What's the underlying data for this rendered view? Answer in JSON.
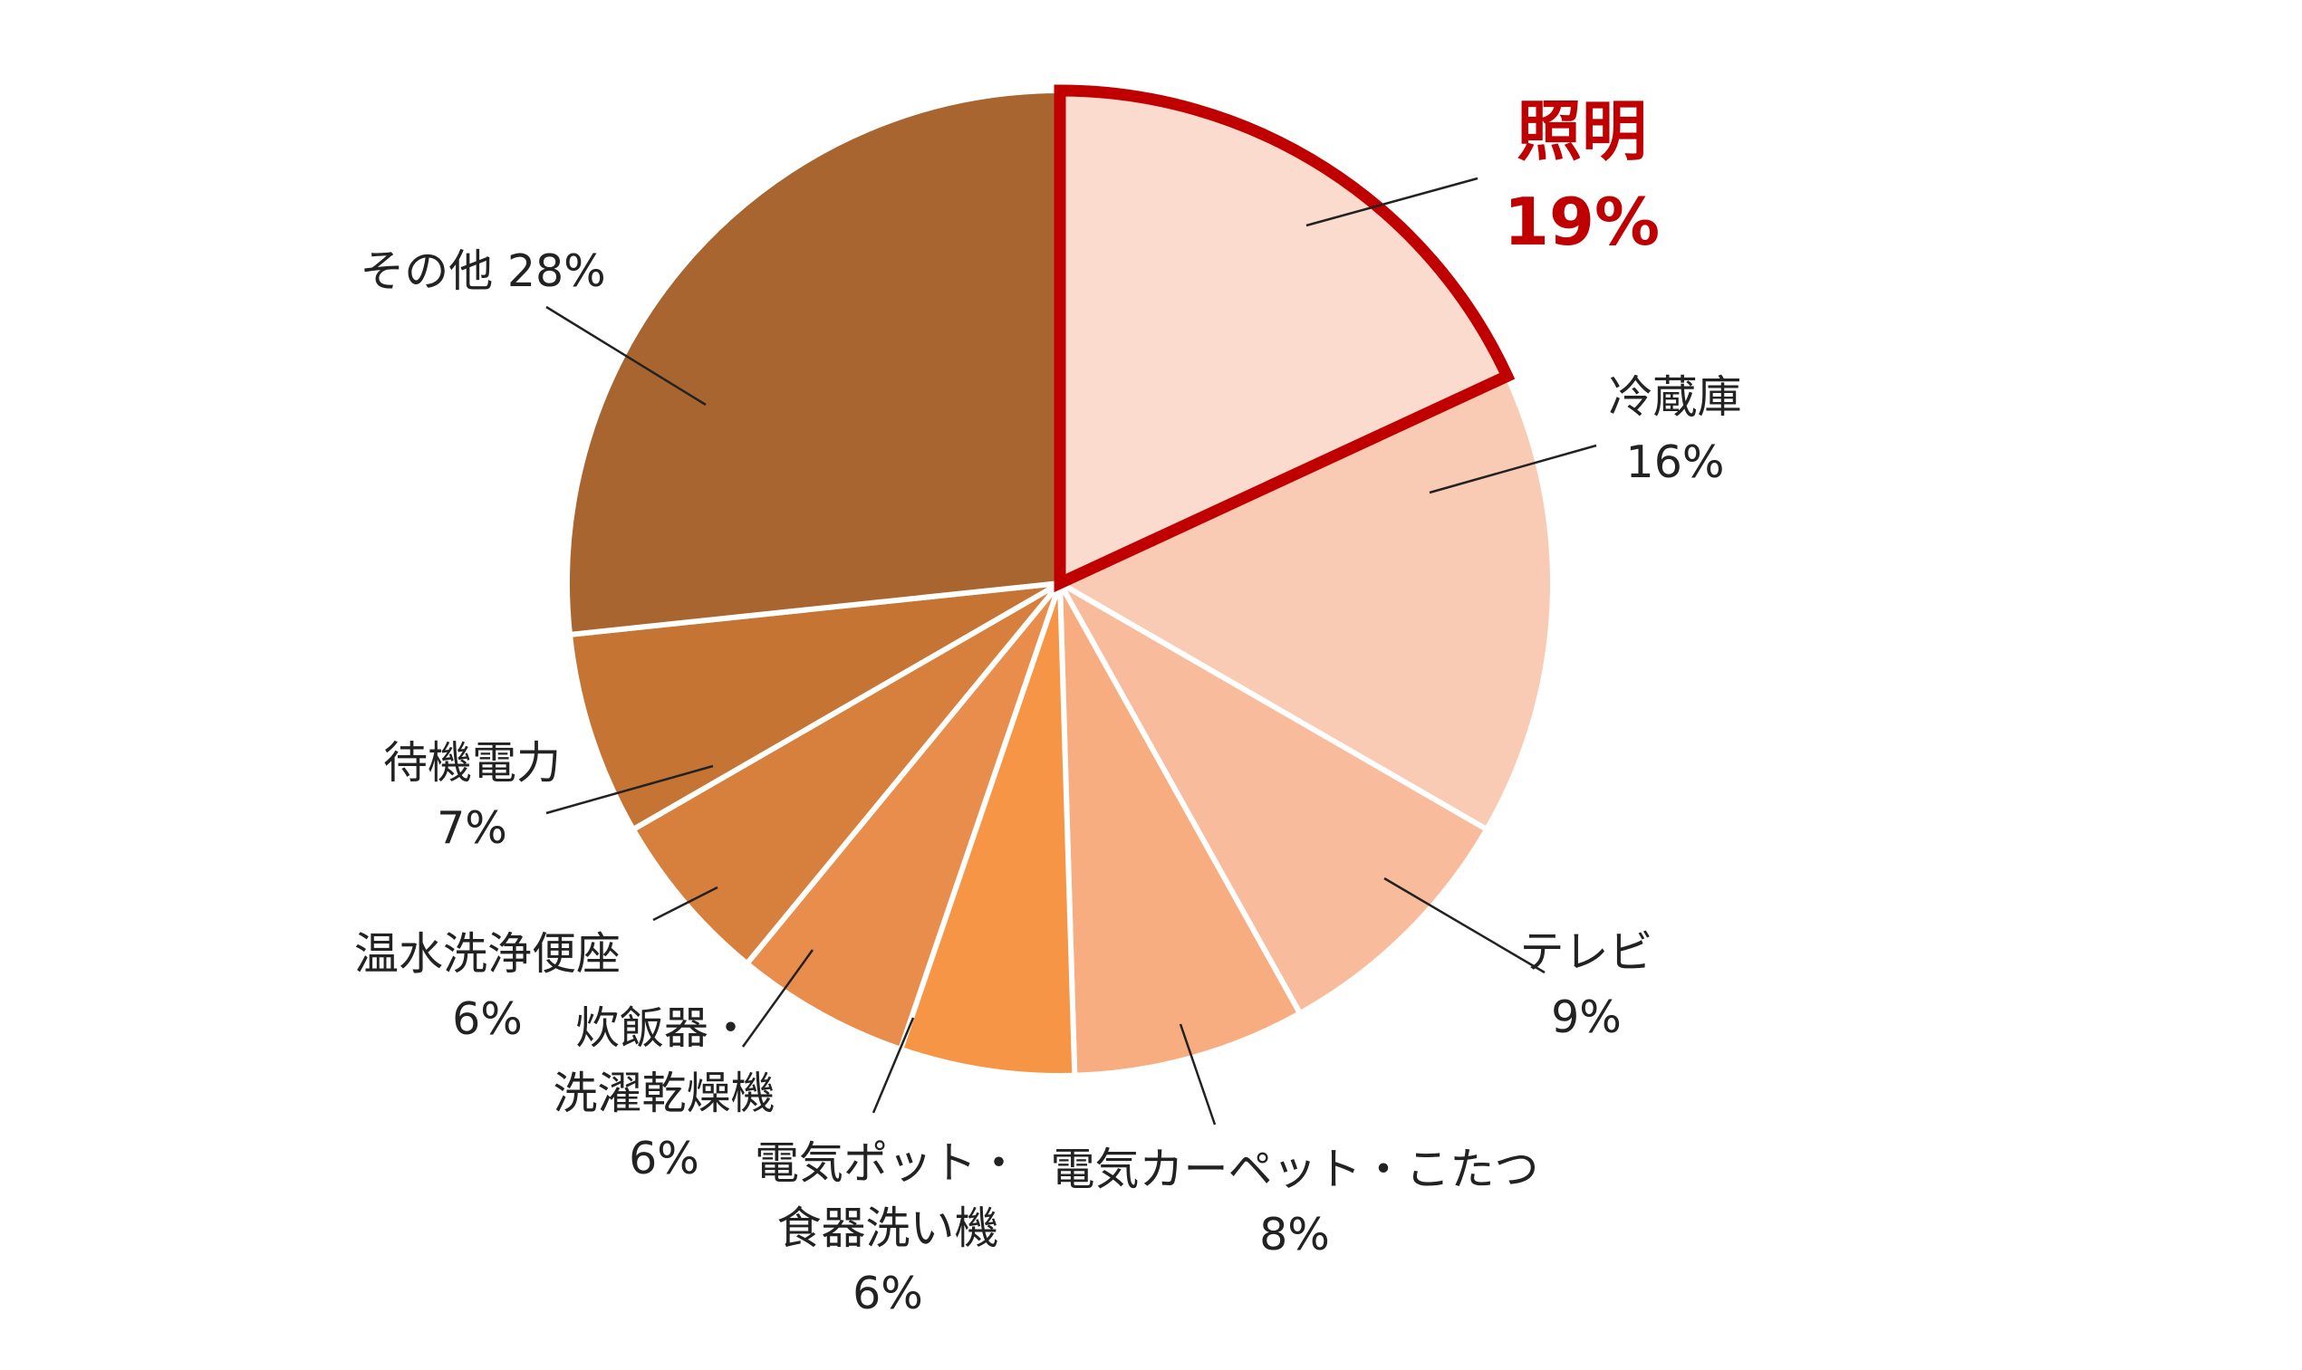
{
  "chart_data": {
    "type": "pie",
    "categories": [
      "照明",
      "冷蔵庫",
      "テレビ",
      "電気カーペット・こたつ",
      "電気ポット・\n食器洗い機",
      "炊飯器・\n洗濯乾燥機",
      "温水洗浄便座",
      "待機電力",
      "その他"
    ],
    "values": [
      19,
      16,
      9,
      8,
      6,
      6,
      6,
      7,
      28
    ],
    "value_labels": [
      "19%",
      "16%",
      "9%",
      "8%",
      "6%",
      "6%",
      "6%",
      "7%",
      "28%"
    ],
    "colors": [
      "#fbdbcd",
      "#f9cbb5",
      "#f8bc9d",
      "#f7ad80",
      "#f69546",
      "#e98d4c",
      "#d7803e",
      "#c57434",
      "#a8652f"
    ],
    "highlight_color": "#c00000"
  }
}
